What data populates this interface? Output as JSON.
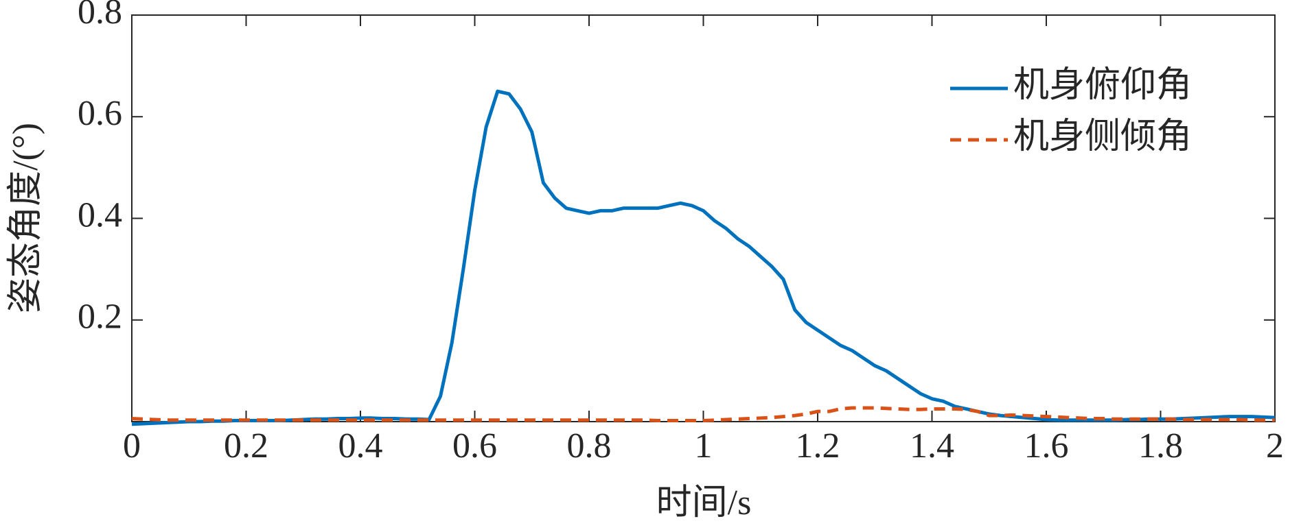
{
  "chart_data": {
    "type": "line",
    "xlabel": "时间/s",
    "ylabel": "姿态角度/(°)",
    "x": [
      0,
      0.02,
      0.04,
      0.06,
      0.08,
      0.1,
      0.12,
      0.14,
      0.16,
      0.18,
      0.2,
      0.22,
      0.24,
      0.26,
      0.28,
      0.3,
      0.32,
      0.34,
      0.36,
      0.38,
      0.4,
      0.42,
      0.44,
      0.46,
      0.48,
      0.5,
      0.52,
      0.54,
      0.56,
      0.58,
      0.6,
      0.62,
      0.64,
      0.66,
      0.68,
      0.7,
      0.72,
      0.74,
      0.76,
      0.78,
      0.8,
      0.82,
      0.84,
      0.86,
      0.88,
      0.9,
      0.92,
      0.94,
      0.96,
      0.98,
      1,
      1.02,
      1.04,
      1.06,
      1.08,
      1.1,
      1.12,
      1.14,
      1.16,
      1.18,
      1.2,
      1.22,
      1.24,
      1.26,
      1.28,
      1.3,
      1.32,
      1.34,
      1.36,
      1.38,
      1.4,
      1.42,
      1.44,
      1.46,
      1.48,
      1.5,
      1.52,
      1.54,
      1.56,
      1.58,
      1.6,
      1.62,
      1.64,
      1.66,
      1.68,
      1.7,
      1.72,
      1.74,
      1.76,
      1.78,
      1.8,
      1.82,
      1.84,
      1.86,
      1.88,
      1.9,
      1.92,
      1.94,
      1.96,
      1.98,
      2
    ],
    "series": [
      {
        "name": "机身俯仰角",
        "color": "#0072bd",
        "dash": "solid",
        "values": [
          -0.005,
          -0.004,
          -0.003,
          -0.002,
          -0.001,
          0,
          0,
          0.001,
          0.001,
          0.002,
          0.002,
          0.002,
          0.002,
          0.002,
          0.003,
          0.004,
          0.005,
          0.005,
          0.006,
          0.006,
          0.007,
          0.007,
          0.006,
          0.006,
          0.005,
          0.005,
          0.004,
          0.05,
          0.155,
          0.3,
          0.455,
          0.58,
          0.65,
          0.645,
          0.615,
          0.57,
          0.47,
          0.44,
          0.42,
          0.415,
          0.41,
          0.415,
          0.415,
          0.42,
          0.42,
          0.42,
          0.42,
          0.425,
          0.43,
          0.425,
          0.415,
          0.395,
          0.38,
          0.36,
          0.345,
          0.325,
          0.305,
          0.28,
          0.22,
          0.195,
          0.18,
          0.165,
          0.15,
          0.14,
          0.125,
          0.11,
          0.1,
          0.085,
          0.07,
          0.055,
          0.045,
          0.04,
          0.03,
          0.025,
          0.02,
          0.015,
          0.012,
          0.01,
          0.008,
          0.006,
          0.004,
          0.003,
          0.003,
          0.003,
          0.003,
          0.003,
          0.003,
          0.004,
          0.004,
          0.005,
          0.005,
          0.005,
          0.006,
          0.007,
          0.008,
          0.009,
          0.01,
          0.01,
          0.01,
          0.009,
          0.008
        ]
      },
      {
        "name": "机身侧倾角",
        "color": "#d95319",
        "dash": "dashed",
        "values": [
          0.006,
          0.005,
          0.004,
          0.003,
          0.003,
          0.003,
          0.003,
          0.003,
          0.003,
          0.003,
          0.003,
          0.003,
          0.003,
          0.003,
          0.003,
          0.003,
          0.003,
          0.003,
          0.003,
          0.003,
          0.003,
          0.003,
          0.003,
          0.003,
          0.003,
          0.003,
          0.003,
          0.003,
          0.003,
          0.003,
          0.003,
          0.003,
          0.003,
          0.003,
          0.003,
          0.003,
          0.003,
          0.003,
          0.003,
          0.003,
          0.003,
          0.003,
          0.003,
          0.003,
          0.003,
          0.003,
          0.002,
          0.002,
          0.002,
          0.002,
          0.002,
          0.003,
          0.004,
          0.005,
          0.006,
          0.007,
          0.008,
          0.01,
          0.012,
          0.015,
          0.02,
          0.02,
          0.025,
          0.027,
          0.027,
          0.027,
          0.026,
          0.025,
          0.024,
          0.024,
          0.025,
          0.025,
          0.025,
          0.024,
          0.02,
          0.012,
          0.012,
          0.013,
          0.012,
          0.011,
          0.01,
          0.009,
          0.008,
          0.007,
          0.006,
          0.006,
          0.005,
          0.005,
          0.005,
          0.005,
          0.005,
          0.005,
          0.004,
          0.004,
          0.004,
          0.004,
          0.004,
          0.004,
          0.003,
          0.003,
          0.003
        ]
      }
    ],
    "xlim": [
      0,
      2
    ],
    "xticks": [
      0,
      0.2,
      0.4,
      0.6,
      0.8,
      1,
      1.2,
      1.4,
      1.6,
      1.8,
      2
    ],
    "ylim": [
      0,
      0.8
    ],
    "yticks": [
      0.2,
      0.4,
      0.6,
      0.8
    ],
    "legend": "upper right",
    "grid": false
  }
}
